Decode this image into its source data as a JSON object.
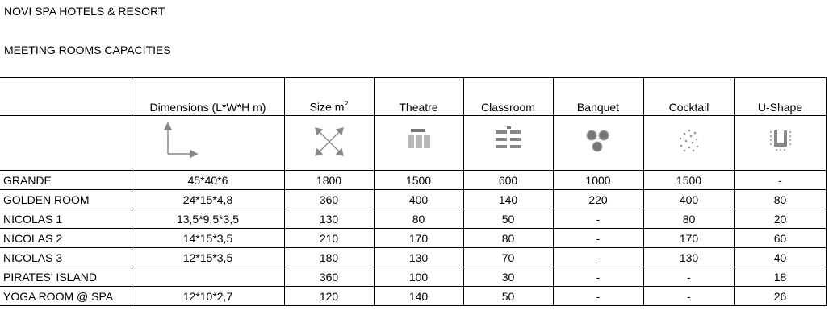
{
  "title": "NOVI SPA HOTELS & RESORT",
  "subtitle": "MEETING ROOMS CAPACITIES",
  "headers": {
    "dimensions": "Dimensions (L*W*H m)",
    "size": "Size m",
    "size_sup": "2",
    "theatre": "Theatre",
    "classroom": "Classroom",
    "banquet": "Banquet",
    "cocktail": "Cocktail",
    "ushape": "U-Shape"
  },
  "icons": [
    "dimensions-axes-icon",
    "size-arrows-icon",
    "theatre-layout-icon",
    "classroom-layout-icon",
    "banquet-layout-icon",
    "cocktail-layout-icon",
    "u-shape-layout-icon"
  ],
  "rows": [
    [
      "GRANDE",
      "45*40*6",
      "1800",
      "1500",
      "600",
      "1000",
      "1500",
      "-"
    ],
    [
      "GOLDEN ROOM",
      "24*15*4,8",
      "360",
      "400",
      "140",
      "220",
      "400",
      "80"
    ],
    [
      "NICOLAS 1",
      "13,5*9,5*3,5",
      "130",
      "80",
      "50",
      "-",
      "80",
      "20"
    ],
    [
      "NICOLAS 2",
      "14*15*3,5",
      "210",
      "170",
      "80",
      "-",
      "170",
      "60"
    ],
    [
      "NICOLAS 3",
      "12*15*3,5",
      "180",
      "130",
      "70",
      "-",
      "130",
      "40"
    ],
    [
      "PIRATES' ISLAND",
      "",
      "360",
      "100",
      "30",
      "-",
      "-",
      "18"
    ],
    [
      "YOGA ROOM @ SPA",
      "12*10*2,7",
      "120",
      "140",
      "50",
      "-",
      "-",
      "26"
    ]
  ]
}
